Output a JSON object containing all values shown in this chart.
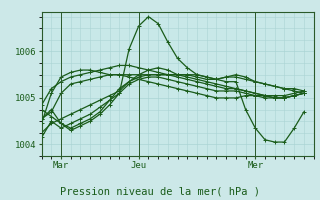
{
  "xlabel": "Pression niveau de la mer( hPa )",
  "bg_color": "#cce8e8",
  "plot_bg_color": "#c8e8e8",
  "grid_color": "#aad4d4",
  "line_color": "#1a5c1a",
  "xtick_labels": [
    "Mar",
    "Jeu",
    "Mer"
  ],
  "xtick_positions": [
    2,
    10,
    22
  ],
  "ytick_labels": [
    "1004",
    "1005",
    "1006"
  ],
  "ytick_positions": [
    1004,
    1005,
    1006
  ],
  "ylim": [
    1003.75,
    1006.85
  ],
  "xlim": [
    0,
    28
  ],
  "series": [
    [
      1004.55,
      1004.7,
      1005.1,
      1005.3,
      1005.35,
      1005.4,
      1005.45,
      1005.5,
      1005.5,
      1005.5,
      1005.5,
      1005.5,
      1005.5,
      1005.5,
      1005.5,
      1005.5,
      1005.5,
      1005.45,
      1005.4,
      1005.45,
      1005.5,
      1005.45,
      1005.35,
      1005.3,
      1005.25,
      1005.2,
      1005.2,
      1005.15
    ],
    [
      1004.75,
      1004.6,
      1004.45,
      1004.35,
      1004.45,
      1004.55,
      1004.7,
      1004.95,
      1005.2,
      1005.35,
      1005.45,
      1005.5,
      1005.5,
      1005.5,
      1005.45,
      1005.4,
      1005.35,
      1005.3,
      1005.25,
      1005.2,
      1005.2,
      1005.15,
      1005.1,
      1005.05,
      1005.0,
      1005.0,
      1005.05,
      1005.1
    ],
    [
      1004.85,
      1005.2,
      1005.35,
      1005.45,
      1005.5,
      1005.55,
      1005.6,
      1005.65,
      1005.7,
      1005.7,
      1005.65,
      1005.6,
      1005.55,
      1005.5,
      1005.5,
      1005.5,
      1005.45,
      1005.4,
      1005.4,
      1005.45,
      1005.45,
      1005.4,
      1005.35,
      1005.3,
      1005.25,
      1005.2,
      1005.15,
      1005.1
    ],
    [
      1004.45,
      1005.1,
      1005.45,
      1005.55,
      1005.6,
      1005.6,
      1005.55,
      1005.5,
      1005.5,
      1005.45,
      1005.4,
      1005.35,
      1005.3,
      1005.25,
      1005.2,
      1005.15,
      1005.1,
      1005.05,
      1005.0,
      1005.0,
      1005.0,
      1005.05,
      1005.05,
      1005.0,
      1005.0,
      1005.0,
      1005.05,
      1005.1
    ],
    [
      1004.25,
      1004.45,
      1004.55,
      1004.65,
      1004.75,
      1004.85,
      1004.95,
      1005.05,
      1005.15,
      1005.35,
      1005.5,
      1005.6,
      1005.65,
      1005.6,
      1005.5,
      1005.45,
      1005.4,
      1005.35,
      1005.3,
      1005.25,
      1005.2,
      1005.15,
      1005.1,
      1005.05,
      1005.0,
      1005.0,
      1005.05,
      1005.1
    ],
    [
      1004.15,
      1004.5,
      1004.35,
      1004.45,
      1004.55,
      1004.65,
      1004.8,
      1004.95,
      1005.1,
      1005.3,
      1005.4,
      1005.45,
      1005.45,
      1005.4,
      1005.35,
      1005.3,
      1005.25,
      1005.2,
      1005.15,
      1005.15,
      1005.15,
      1005.1,
      1005.05,
      1005.05,
      1005.05,
      1005.05,
      1005.1,
      1005.15
    ]
  ],
  "spike": [
    1004.55,
    1004.75,
    1004.45,
    1004.3,
    1004.4,
    1004.5,
    1004.65,
    1004.85,
    1005.1,
    1006.05,
    1006.55,
    1006.75,
    1006.6,
    1006.2,
    1005.85,
    1005.65,
    1005.5,
    1005.45,
    1005.4,
    1005.35,
    1005.35,
    1004.75,
    1004.35,
    1004.1,
    1004.05,
    1004.05,
    1004.35,
    1004.7
  ],
  "lw": 0.9,
  "ms": 2.5
}
